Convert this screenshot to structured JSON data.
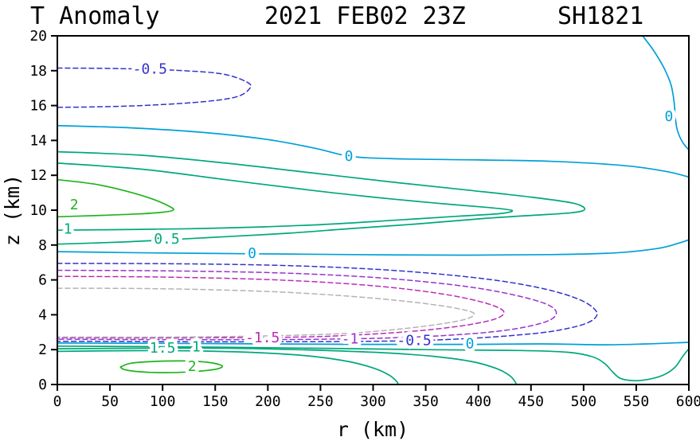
{
  "chart_data": {
    "type": "line",
    "kind": "contour-plot",
    "titles": {
      "left": "T Anomaly",
      "center": "2021 FEB02 23Z",
      "right": "SH1821"
    },
    "axes": {
      "x": {
        "label": "r (km)",
        "min": 0,
        "max": 600,
        "tick": 50
      },
      "y": {
        "label": "z (km)",
        "min": 0,
        "max": 20,
        "tick": 2
      }
    },
    "legend_position": "none",
    "grid": false,
    "levels": [
      -2,
      -1.5,
      -1,
      -0.5,
      0,
      0.5,
      1,
      1.5,
      2
    ],
    "colors": {
      "neg2_gray": "#b3b3b3",
      "neg15_magenta": "#bb2db8",
      "neg1_purple": "#9933cc",
      "neg05_blue": "#3333cc",
      "zero_cyan": "#00a0d8",
      "pos_teal": "#00a87c",
      "pos2_green": "#1fb41f"
    },
    "contours": [
      {
        "id": "neg05-upper",
        "level": -0.5,
        "color": "#3333cc",
        "dashed": true,
        "points": [
          [
            0,
            18.15
          ],
          [
            60,
            18.12
          ],
          [
            120,
            18.0
          ],
          [
            158,
            17.8
          ],
          [
            180,
            17.35
          ],
          [
            183,
            17.0
          ],
          [
            170,
            16.5
          ],
          [
            135,
            16.2
          ],
          [
            80,
            16.0
          ],
          [
            30,
            15.92
          ],
          [
            0,
            15.9
          ]
        ],
        "labels": [
          {
            "r": 88,
            "z": 18.05,
            "text": "-0.5"
          }
        ]
      },
      {
        "id": "zero-top-right",
        "level": 0,
        "color": "#00a0d8",
        "dashed": false,
        "points": [
          [
            556,
            20
          ],
          [
            566,
            19.2
          ],
          [
            576,
            18.2
          ],
          [
            583,
            17.2
          ],
          [
            586,
            16.2
          ],
          [
            587,
            15.4
          ],
          [
            589,
            14.6
          ],
          [
            594,
            13.9
          ],
          [
            600,
            13.45
          ]
        ],
        "labels": [
          {
            "r": 581,
            "z": 15.35,
            "text": "0"
          }
        ]
      },
      {
        "id": "zero-upper",
        "level": 0,
        "color": "#00a0d8",
        "dashed": false,
        "points": [
          [
            0,
            14.85
          ],
          [
            70,
            14.72
          ],
          [
            140,
            14.45
          ],
          [
            200,
            14.05
          ],
          [
            245,
            13.55
          ],
          [
            277,
            13.1
          ],
          [
            320,
            12.95
          ],
          [
            400,
            12.88
          ],
          [
            470,
            12.8
          ],
          [
            540,
            12.55
          ],
          [
            580,
            12.2
          ],
          [
            600,
            11.9
          ]
        ],
        "labels": [
          {
            "r": 277,
            "z": 13.05,
            "text": "0"
          }
        ]
      },
      {
        "id": "pos05-tongue",
        "level": 0.5,
        "color": "#00a87c",
        "dashed": false,
        "points": [
          [
            0,
            13.35
          ],
          [
            80,
            13.15
          ],
          [
            160,
            12.7
          ],
          [
            240,
            12.15
          ],
          [
            320,
            11.6
          ],
          [
            390,
            11.15
          ],
          [
            450,
            10.75
          ],
          [
            490,
            10.4
          ],
          [
            501,
            10.05
          ],
          [
            488,
            9.85
          ],
          [
            450,
            9.7
          ],
          [
            400,
            9.5
          ],
          [
            340,
            9.2
          ],
          [
            280,
            8.95
          ],
          [
            220,
            8.68
          ],
          [
            160,
            8.48
          ],
          [
            105,
            8.3
          ],
          [
            60,
            8.17
          ],
          [
            0,
            8.05
          ]
        ],
        "labels": [
          {
            "r": 104,
            "z": 8.3,
            "text": "0.5"
          }
        ]
      },
      {
        "id": "pos1-tongue",
        "level": 1,
        "color": "#00a87c",
        "dashed": false,
        "points": [
          [
            0,
            12.7
          ],
          [
            80,
            12.35
          ],
          [
            160,
            11.75
          ],
          [
            240,
            11.15
          ],
          [
            300,
            10.75
          ],
          [
            360,
            10.4
          ],
          [
            410,
            10.15
          ],
          [
            432,
            9.98
          ],
          [
            420,
            9.8
          ],
          [
            380,
            9.65
          ],
          [
            320,
            9.42
          ],
          [
            260,
            9.2
          ],
          [
            200,
            9.05
          ],
          [
            140,
            8.95
          ],
          [
            80,
            8.9
          ],
          [
            0,
            8.85
          ]
        ],
        "labels": [
          {
            "r": 10,
            "z": 8.88,
            "text": "1"
          }
        ]
      },
      {
        "id": "pos2-tongue",
        "level": 2,
        "color": "#1fb41f",
        "dashed": false,
        "points": [
          [
            0,
            11.75
          ],
          [
            35,
            11.5
          ],
          [
            65,
            11.1
          ],
          [
            90,
            10.65
          ],
          [
            107,
            10.2
          ],
          [
            110,
            10.0
          ],
          [
            100,
            9.88
          ],
          [
            75,
            9.78
          ],
          [
            40,
            9.7
          ],
          [
            0,
            9.62
          ]
        ],
        "labels": [
          {
            "r": 16,
            "z": 10.27,
            "text": "2"
          }
        ]
      },
      {
        "id": "zero-mid",
        "level": 0,
        "color": "#00a0d8",
        "dashed": false,
        "points": [
          [
            0,
            7.62
          ],
          [
            90,
            7.55
          ],
          [
            185,
            7.5
          ],
          [
            280,
            7.45
          ],
          [
            380,
            7.42
          ],
          [
            470,
            7.45
          ],
          [
            530,
            7.55
          ],
          [
            570,
            7.8
          ],
          [
            590,
            8.1
          ],
          [
            600,
            8.3
          ]
        ],
        "labels": [
          {
            "r": 185,
            "z": 7.5,
            "text": "0"
          }
        ]
      },
      {
        "id": "neg05-lower",
        "level": -0.5,
        "color": "#3333cc",
        "dashed": true,
        "points": [
          [
            0,
            6.95
          ],
          [
            100,
            6.93
          ],
          [
            200,
            6.85
          ],
          [
            290,
            6.65
          ],
          [
            360,
            6.35
          ],
          [
            420,
            5.95
          ],
          [
            465,
            5.45
          ],
          [
            495,
            4.9
          ],
          [
            510,
            4.35
          ],
          [
            512,
            3.9
          ],
          [
            500,
            3.45
          ],
          [
            470,
            3.05
          ],
          [
            430,
            2.8
          ],
          [
            385,
            2.62
          ],
          [
            339,
            2.52
          ],
          [
            280,
            2.47
          ],
          [
            200,
            2.45
          ],
          [
            120,
            2.45
          ],
          [
            60,
            2.47
          ],
          [
            0,
            2.48
          ]
        ],
        "labels": [
          {
            "r": 339,
            "z": 2.5,
            "text": "-0.5"
          }
        ]
      },
      {
        "id": "neg1-tongue",
        "level": -1,
        "color": "#9933cc",
        "dashed": true,
        "points": [
          [
            0,
            6.55
          ],
          [
            100,
            6.52
          ],
          [
            200,
            6.42
          ],
          [
            280,
            6.22
          ],
          [
            345,
            5.92
          ],
          [
            400,
            5.52
          ],
          [
            440,
            5.05
          ],
          [
            465,
            4.6
          ],
          [
            474,
            4.15
          ],
          [
            468,
            3.7
          ],
          [
            445,
            3.3
          ],
          [
            410,
            3.0
          ],
          [
            365,
            2.8
          ],
          [
            320,
            2.68
          ],
          [
            278,
            2.62
          ],
          [
            220,
            2.58
          ],
          [
            140,
            2.57
          ],
          [
            70,
            2.58
          ],
          [
            0,
            2.6
          ]
        ],
        "labels": [
          {
            "r": 278,
            "z": 2.58,
            "text": "-1"
          }
        ]
      },
      {
        "id": "neg15-tongue",
        "level": -1.5,
        "color": "#bb2db8",
        "dashed": true,
        "points": [
          [
            0,
            6.2
          ],
          [
            90,
            6.17
          ],
          [
            180,
            6.06
          ],
          [
            255,
            5.86
          ],
          [
            315,
            5.58
          ],
          [
            365,
            5.2
          ],
          [
            400,
            4.78
          ],
          [
            420,
            4.38
          ],
          [
            424,
            4.05
          ],
          [
            414,
            3.72
          ],
          [
            390,
            3.42
          ],
          [
            355,
            3.15
          ],
          [
            315,
            2.95
          ],
          [
            270,
            2.8
          ],
          [
            230,
            2.72
          ],
          [
            150,
            2.68
          ],
          [
            80,
            2.67
          ],
          [
            0,
            2.68
          ]
        ],
        "labels": [
          {
            "r": 195,
            "z": 2.64,
            "text": "-1.5"
          }
        ]
      },
      {
        "id": "neg2-tongue",
        "level": -2,
        "color": "#b3b3b3",
        "dashed": true,
        "points": [
          [
            0,
            5.52
          ],
          [
            90,
            5.5
          ],
          [
            180,
            5.38
          ],
          [
            250,
            5.18
          ],
          [
            310,
            4.9
          ],
          [
            355,
            4.6
          ],
          [
            385,
            4.3
          ],
          [
            396,
            4.05
          ],
          [
            388,
            3.75
          ],
          [
            362,
            3.45
          ],
          [
            325,
            3.18
          ],
          [
            280,
            2.95
          ],
          [
            236,
            2.84
          ],
          [
            170,
            2.76
          ],
          [
            100,
            2.72
          ],
          [
            40,
            2.72
          ],
          [
            0,
            2.72
          ]
        ],
        "labels": []
      },
      {
        "id": "zero-bottom",
        "level": 0,
        "color": "#00a0d8",
        "dashed": false,
        "points": [
          [
            0,
            2.38
          ],
          [
            100,
            2.36
          ],
          [
            200,
            2.33
          ],
          [
            300,
            2.3
          ],
          [
            392,
            2.3
          ],
          [
            460,
            2.33
          ],
          [
            520,
            2.28
          ],
          [
            560,
            2.33
          ],
          [
            600,
            2.42
          ]
        ],
        "labels": [
          {
            "r": 392,
            "z": 2.3,
            "text": "0"
          }
        ]
      },
      {
        "id": "pos05-bottom",
        "level": 0.5,
        "color": "#00a87c",
        "dashed": false,
        "points": [
          [
            0,
            2.2
          ],
          [
            120,
            2.16
          ],
          [
            240,
            2.08
          ],
          [
            350,
            2.0
          ],
          [
            440,
            1.95
          ],
          [
            485,
            1.85
          ],
          [
            508,
            1.6
          ],
          [
            520,
            1.2
          ],
          [
            528,
            0.7
          ],
          [
            535,
            0.35
          ],
          [
            548,
            0.22
          ],
          [
            562,
            0.3
          ],
          [
            576,
            0.55
          ],
          [
            587,
            1.0
          ],
          [
            594,
            1.6
          ],
          [
            600,
            2.05
          ]
        ],
        "labels": []
      },
      {
        "id": "pos1-bottom",
        "level": 1,
        "color": "#00a87c",
        "dashed": false,
        "points": [
          [
            0,
            2.05
          ],
          [
            80,
            2.08
          ],
          [
            160,
            2.08
          ],
          [
            240,
            1.98
          ],
          [
            310,
            1.82
          ],
          [
            360,
            1.6
          ],
          [
            395,
            1.3
          ],
          [
            418,
            0.9
          ],
          [
            430,
            0.5
          ],
          [
            435,
            0.15
          ],
          [
            436,
            0
          ]
        ],
        "labels": [
          {
            "r": 132,
            "z": 2.12,
            "text": "1"
          }
        ]
      },
      {
        "id": "pos15-bottom",
        "level": 1.5,
        "color": "#00a87c",
        "dashed": false,
        "points": [
          [
            0,
            1.9
          ],
          [
            70,
            1.94
          ],
          [
            140,
            1.92
          ],
          [
            200,
            1.8
          ],
          [
            245,
            1.6
          ],
          [
            278,
            1.3
          ],
          [
            300,
            0.95
          ],
          [
            315,
            0.55
          ],
          [
            322,
            0.2
          ],
          [
            324,
            0
          ]
        ],
        "labels": [
          {
            "r": 100,
            "z": 2.05,
            "text": "1.5"
          }
        ]
      },
      {
        "id": "pos2-bottom",
        "level": 2,
        "color": "#1fb41f",
        "dashed": false,
        "points": [
          [
            60,
            1.0
          ],
          [
            70,
            1.22
          ],
          [
            95,
            1.33
          ],
          [
            120,
            1.35
          ],
          [
            142,
            1.28
          ],
          [
            155,
            1.12
          ],
          [
            156,
            0.98
          ],
          [
            148,
            0.85
          ],
          [
            125,
            0.72
          ],
          [
            98,
            0.68
          ],
          [
            75,
            0.75
          ],
          [
            63,
            0.87
          ],
          [
            60,
            1.0
          ]
        ],
        "labels": [
          {
            "r": 128,
            "z": 1.0,
            "text": "2"
          }
        ]
      }
    ]
  }
}
